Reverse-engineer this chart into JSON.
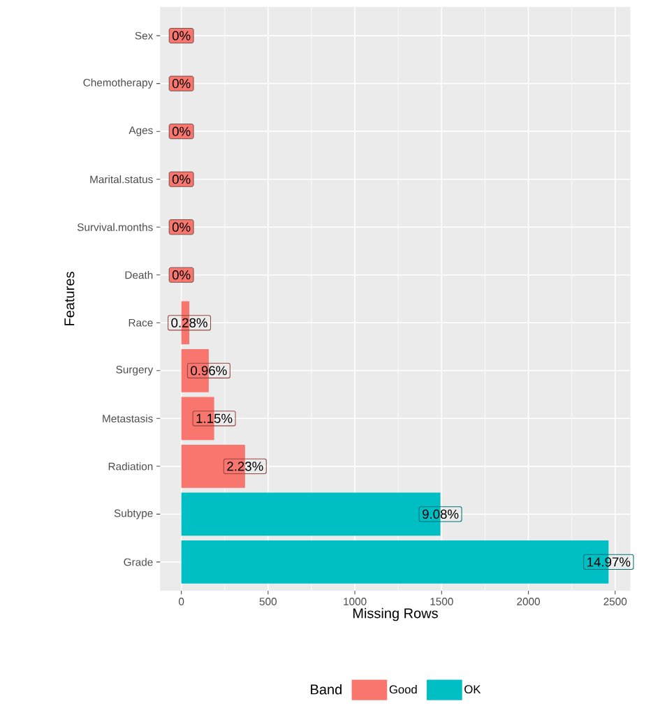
{
  "chart_data": {
    "type": "bar",
    "orientation": "horizontal",
    "stacked": false,
    "categories": [
      "Sex",
      "Chemotherapy",
      "Ages",
      "Marital.status",
      "Survival.months",
      "Death",
      "Race",
      "Surgery",
      "Metastasis",
      "Radiation",
      "Subtype",
      "Grade"
    ],
    "series": [
      {
        "name": "Good",
        "color": "#f8766d",
        "values": [
          0,
          0,
          0,
          0,
          0,
          0,
          46,
          158,
          189,
          367,
          null,
          null
        ],
        "value_labels": [
          "0%",
          "0%",
          "0%",
          "0%",
          "0%",
          "0%",
          null,
          null,
          null,
          null,
          null,
          null
        ]
      },
      {
        "name": "OK",
        "color": "#00bfc4",
        "values": [
          null,
          null,
          null,
          null,
          null,
          null,
          null,
          null,
          null,
          null,
          1493,
          2462
        ]
      }
    ],
    "annotations": [
      {
        "text": "0.28%",
        "x": 46,
        "y": "Race"
      },
      {
        "text": "0.96%",
        "x": 158,
        "y": "Surgery"
      },
      {
        "text": "1.15%",
        "x": 189,
        "y": "Metastasis"
      },
      {
        "text": "2.23%",
        "x": 367,
        "y": "Radiation"
      },
      {
        "text": "9.08%",
        "x": 1493,
        "y": "Subtype"
      },
      {
        "text": "14.97%",
        "x": 2462,
        "y": "Grade"
      }
    ],
    "xlabel": "Missing Rows",
    "ylabel": "Features",
    "legend_title": "Band",
    "xlim": [
      -122,
      2588
    ],
    "xticks": [
      0,
      500,
      1000,
      1500,
      2000,
      2500
    ],
    "grid": true,
    "legend": "bottom"
  }
}
